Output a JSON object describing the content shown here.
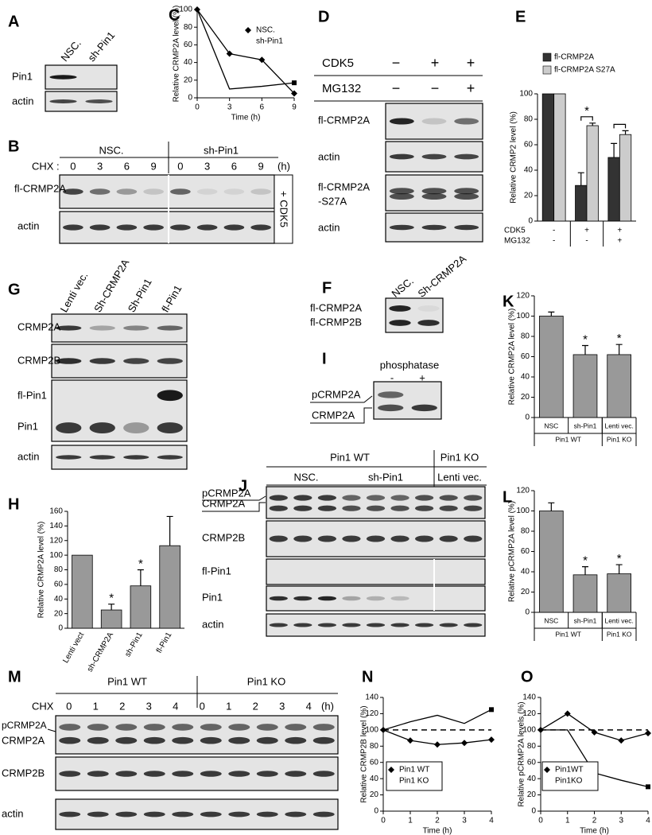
{
  "panel_letters": [
    "A",
    "B",
    "C",
    "D",
    "E",
    "F",
    "G",
    "H",
    "I",
    "J",
    "K",
    "L",
    "M",
    "N",
    "O"
  ],
  "blots": {
    "A": {
      "columns": [
        "NSC.",
        "sh-Pin1"
      ],
      "rows": [
        "Pin1",
        "actin"
      ]
    },
    "B": {
      "groups": [
        "NSC.",
        "sh-Pin1"
      ],
      "treatment": "CHX :",
      "times": [
        0,
        3,
        6,
        9,
        0,
        3,
        6,
        9
      ],
      "unit": "(h)",
      "rows": [
        "fl-CRMP2A",
        "actin"
      ],
      "side_label": "+ CDK5"
    },
    "D": {
      "treatments": [
        {
          "name": "CDK5",
          "signs": [
            "−",
            "+",
            "+"
          ]
        },
        {
          "name": "MG132",
          "signs": [
            "−",
            "−",
            "+"
          ]
        }
      ],
      "rows": [
        [
          "fl-CRMP2A"
        ],
        [
          "actin"
        ],
        [
          "fl-CRMP2A",
          "-S27A"
        ],
        [
          "actin"
        ]
      ]
    },
    "F": {
      "columns": [
        "NSC.",
        "Sh-CRMP2A"
      ],
      "rows": [
        "fl-CRMP2A",
        "fl-CRMP2B"
      ]
    },
    "G": {
      "columns": [
        "Lenti vec.",
        "Sh-CRMP2A",
        "Sh-Pin1",
        "fl-Pin1"
      ],
      "rows": [
        "CRMP2A",
        "CRMP2B",
        "fl-Pin1",
        "Pin1",
        "actin"
      ]
    },
    "I": {
      "treatment": "phosphatase",
      "signs": [
        "-",
        "+"
      ],
      "rows": [
        "pCRMP2A",
        "CRMP2A"
      ]
    },
    "J": {
      "groups": [
        "Pin1 WT",
        "Pin1 KO"
      ],
      "subgroups": [
        "NSC.",
        "sh-Pin1",
        "Lenti vec."
      ],
      "rows": [
        "pCRMP2A",
        "CRMP2A",
        "CRMP2B",
        "fl-Pin1",
        "Pin1",
        "actin"
      ]
    },
    "M": {
      "groups": [
        "Pin1 WT",
        "Pin1 KO"
      ],
      "treatment": "CHX",
      "times": [
        0,
        1,
        2,
        3,
        4,
        0,
        1,
        2,
        3,
        4
      ],
      "unit": "(h)",
      "rows": [
        "pCRMP2A",
        "CRMP2A",
        "CRMP2B",
        "actin"
      ]
    }
  },
  "chart_data": [
    {
      "type": "line",
      "ylabel": "Relative CRMP2A level (%)",
      "xlabel": "Time (h)",
      "x": [
        0,
        3,
        6,
        9
      ],
      "series": [
        {
          "name": "NSC.",
          "color": "#000000",
          "marker": "diamond",
          "values": [
            100,
            50,
            43,
            5
          ]
        },
        {
          "name": "sh-Pin1",
          "color": "#000000",
          "marker": "square",
          "marker_last_only": true,
          "values": [
            100,
            10,
            13,
            17
          ]
        }
      ],
      "xlim": [
        0,
        9
      ],
      "xticks": [
        0,
        3,
        6,
        9
      ],
      "ylim": [
        0,
        100
      ],
      "yticks": [
        0,
        20,
        40,
        60,
        80,
        100
      ]
    },
    {
      "type": "bar",
      "ylabel": "Relative CRMP2 level (%)",
      "categories": [
        null,
        null,
        null
      ],
      "series": [
        {
          "name": "fl-CRMP2A",
          "color": "#333333",
          "values": [
            100,
            28,
            50
          ],
          "errors": [
            null,
            10,
            11
          ]
        },
        {
          "name": "fl-CRMP2A S27A",
          "color": "#cccccc",
          "values": [
            100,
            75,
            68
          ],
          "errors": [
            null,
            2,
            3
          ]
        }
      ],
      "conditions": [
        {
          "name": "CDK5",
          "signs": [
            "-",
            "+",
            "+"
          ]
        },
        {
          "name": "MG132",
          "signs": [
            "-",
            "-",
            "+"
          ]
        }
      ],
      "brackets": [
        1,
        2
      ],
      "stars": [
        {
          "index": 1,
          "label": "*"
        }
      ],
      "ylim": [
        0,
        100
      ],
      "yticks": [
        0,
        20,
        40,
        60,
        80,
        100
      ]
    },
    {
      "type": "bar",
      "ylabel": "Relative CRMP2A level (%)",
      "categories": [
        "Lenti vect",
        "sh-CRMP2A",
        "sh-Pin1",
        "fl-Pin1"
      ],
      "series": [
        {
          "color": "#999999",
          "values": [
            100,
            25,
            58,
            113
          ],
          "errors": [
            null,
            8,
            22,
            40
          ]
        }
      ],
      "stars": [
        {
          "index": 1,
          "label": "*"
        },
        {
          "index": 2,
          "label": "*"
        }
      ],
      "ylim": [
        0,
        160
      ],
      "yticks": [
        0,
        20,
        40,
        60,
        80,
        100,
        120,
        140,
        160
      ]
    },
    {
      "type": "bar",
      "ylabel": "Relative CRMP2A level (%)",
      "categories": [
        "NSC",
        "sh-Pin1",
        "Lenti vec."
      ],
      "series": [
        {
          "color": "#999999",
          "values": [
            100,
            62,
            62
          ],
          "errors": [
            4,
            9,
            10
          ]
        }
      ],
      "groups": [
        {
          "name": "Pin1 WT",
          "count": 2
        },
        {
          "name": "Pin1 KO",
          "count": 1
        }
      ],
      "stars": [
        {
          "index": 1,
          "label": "*"
        },
        {
          "index": 2,
          "label": "*"
        }
      ],
      "ylim": [
        0,
        120
      ],
      "yticks": [
        0,
        20,
        40,
        60,
        80,
        100,
        120
      ]
    },
    {
      "type": "bar",
      "ylabel": "Relative pCRMP2A level (%)",
      "categories": [
        "NSC",
        "sh-Pin1",
        "Lenti vec."
      ],
      "series": [
        {
          "color": "#999999",
          "values": [
            100,
            37,
            38
          ],
          "errors": [
            8,
            8,
            9
          ]
        }
      ],
      "groups": [
        {
          "name": "Pin1 WT",
          "count": 2
        },
        {
          "name": "Pin1 KO",
          "count": 1
        }
      ],
      "stars": [
        {
          "index": 1,
          "label": "*"
        },
        {
          "index": 2,
          "label": "*"
        }
      ],
      "ylim": [
        0,
        120
      ],
      "yticks": [
        0,
        20,
        40,
        60,
        80,
        100,
        120
      ]
    },
    {
      "type": "line",
      "ylabel": "Relative CRMP2B level (%)",
      "xlabel": "Time (h)",
      "x": [
        0,
        1,
        2,
        3,
        4
      ],
      "series": [
        {
          "name": "Pin1 WT",
          "color": "#000000",
          "marker": "diamond",
          "values": [
            100,
            87,
            82,
            84,
            88
          ]
        },
        {
          "name": "Pin1 KO",
          "color": "#000000",
          "marker": "square",
          "marker_last_only": true,
          "values": [
            100,
            110,
            118,
            108,
            125
          ]
        }
      ],
      "ref_line": 100,
      "xlim": [
        0,
        4
      ],
      "xticks": [
        0,
        1,
        2,
        3,
        4
      ],
      "ylim": [
        0,
        140
      ],
      "yticks": [
        0,
        20,
        40,
        60,
        80,
        100,
        120,
        140
      ]
    },
    {
      "type": "line",
      "ylabel": "Relative pCRMP2A levels (%)",
      "xlabel": "Time (h)",
      "x": [
        0,
        1,
        2,
        3,
        4
      ],
      "series": [
        {
          "name": "Pin1WT",
          "color": "#000000",
          "marker": "diamond",
          "values": [
            100,
            120,
            97,
            87,
            96
          ]
        },
        {
          "name": "Pin1KO",
          "color": "#000000",
          "marker": "square",
          "marker_last_only": true,
          "values": [
            100,
            100,
            47,
            38,
            30
          ]
        }
      ],
      "ref_line": 100,
      "xlim": [
        0,
        4
      ],
      "xticks": [
        0,
        1,
        2,
        3,
        4
      ],
      "ylim": [
        0,
        140
      ],
      "yticks": [
        0,
        20,
        40,
        60,
        80,
        100,
        120,
        140
      ]
    }
  ]
}
